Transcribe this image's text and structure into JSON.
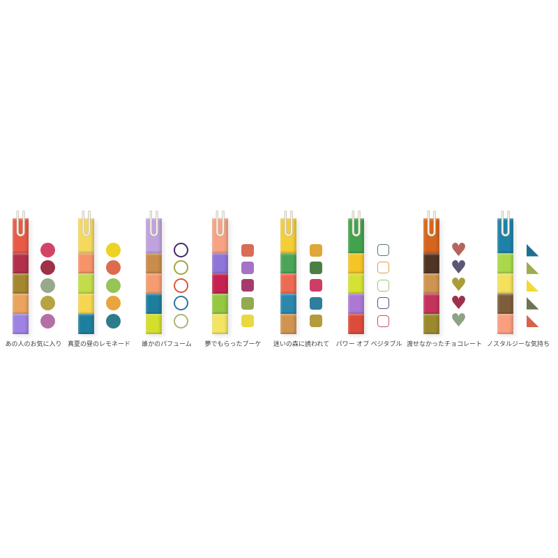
{
  "background_color": "#ffffff",
  "label_color": "#3c3c3c",
  "clip_colors": {
    "wire_light": "#fbf8f1",
    "wire_shadow": "#c3bbaa"
  },
  "swatch_heart_glyph": "♥",
  "columns": [
    {
      "label": "あの人のお気に入り",
      "swatch_shape": "circle",
      "stack": [
        "#e85a47",
        "#b23049",
        "#a5872f",
        "#eaa45e",
        "#9e83e2"
      ],
      "swatches": [
        "#d24568",
        "#9e3048",
        "#97a98a",
        "#b5a443",
        "#b56fa7"
      ]
    },
    {
      "label": "真夏の昼のレモネード",
      "swatch_shape": "circle",
      "stack": [
        "#f4d95c",
        "#f5936b",
        "#c2dc4a",
        "#f6d64f",
        "#1e7e9d"
      ],
      "swatches": [
        "#eed224",
        "#dd6c4f",
        "#95c458",
        "#eaa43d",
        "#2d7c8c"
      ]
    },
    {
      "label": "誰かのパフューム",
      "swatch_shape": "ring",
      "stack": [
        "#c0a2de",
        "#ca8c4b",
        "#f59c72",
        "#1e7e9d",
        "#d4df2d"
      ],
      "swatches": [
        "#44265f",
        "#a4a43d",
        "#d9553d",
        "#2c709c",
        "#acb273"
      ]
    },
    {
      "label": "夢でもらったブーケ",
      "swatch_shape": "square",
      "stack": [
        "#f6a283",
        "#8e75d8",
        "#c62251",
        "#94c841",
        "#f3e462"
      ],
      "swatches": [
        "#da6b56",
        "#a573c6",
        "#a63c6e",
        "#94aa50",
        "#e9d93f"
      ]
    },
    {
      "label": "迷いの森に誘われて",
      "swatch_shape": "square",
      "stack": [
        "#f3ce34",
        "#4ca556",
        "#ed6b53",
        "#2c87ac",
        "#d09451"
      ],
      "swatches": [
        "#e0a738",
        "#4c7f43",
        "#cd3e67",
        "#2f7e9e",
        "#b29c3c"
      ]
    },
    {
      "label": "パワー オブ ベジタブル",
      "swatch_shape": "square-outline",
      "stack": [
        "#42a24d",
        "#f5c426",
        "#d5e133",
        "#a979d3",
        "#dd4b3a"
      ],
      "swatches": [
        "#4b7b65",
        "#e19c3e",
        "#a0c273",
        "#5b4b76",
        "#c84c5f"
      ]
    },
    {
      "label": "渡せなかったチョコレート",
      "swatch_shape": "heart",
      "stack": [
        "#d5651f",
        "#4f3524",
        "#d09451",
        "#c3335b",
        "#9a8a2d"
      ],
      "swatches": [
        "#b5655d",
        "#5c5774",
        "#aa9d39",
        "#9d314a",
        "#8da384"
      ]
    },
    {
      "label": "ノスタルジーな気持ち",
      "swatch_shape": "triangle",
      "stack": [
        "#1e81a9",
        "#a9d94b",
        "#f3e15d",
        "#7d5d3b",
        "#fa9e7e"
      ],
      "swatches": [
        "#1e6f8f",
        "#9dac4c",
        "#f2d935",
        "#6f7253",
        "#d9614b"
      ]
    }
  ]
}
